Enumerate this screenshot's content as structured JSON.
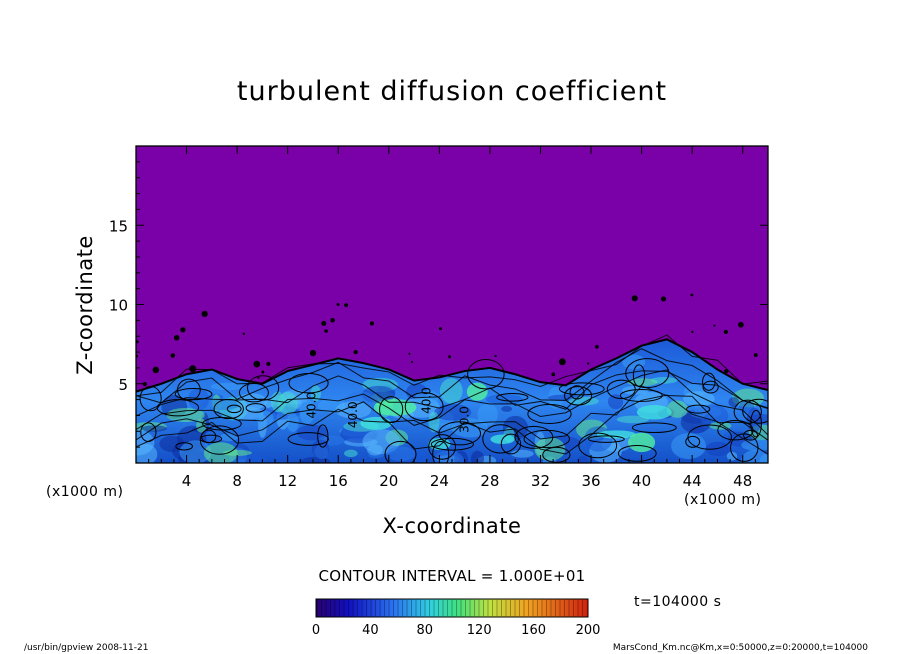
{
  "chart_data": {
    "type": "heatmap",
    "title": "turbulent diffusion coefficient",
    "xlabel": "X-coordinate",
    "ylabel": "Z-coordinate",
    "x_unit": "(x1000 m)",
    "z_unit": "(x1000 m)",
    "xlim": [
      0,
      50
    ],
    "zlim": [
      0,
      20
    ],
    "x_ticks": [
      4,
      8,
      12,
      16,
      20,
      24,
      28,
      32,
      36,
      40,
      44,
      48
    ],
    "z_ticks": [
      5,
      10,
      15
    ],
    "contour_interval": "CONTOUR INTERVAL = 1.000E+01",
    "contour_labels": [
      "40.0",
      "40.0",
      "40.0",
      "30.0"
    ],
    "colorbar": {
      "min": 0,
      "max": 200,
      "ticks": [
        0,
        40,
        80,
        120,
        160,
        200
      ]
    },
    "time_label": "t=104000 s",
    "background_color": "#7a00a8",
    "mixed_layer_top_km": [
      [
        0,
        4.5
      ],
      [
        2,
        5.0
      ],
      [
        4,
        5.6
      ],
      [
        6,
        5.9
      ],
      [
        8,
        5.3
      ],
      [
        10,
        5.0
      ],
      [
        12,
        5.8
      ],
      [
        14,
        6.2
      ],
      [
        16,
        6.6
      ],
      [
        18,
        6.3
      ],
      [
        20,
        5.9
      ],
      [
        22,
        5.2
      ],
      [
        24,
        5.4
      ],
      [
        26,
        5.8
      ],
      [
        28,
        6.0
      ],
      [
        30,
        5.6
      ],
      [
        32,
        5.1
      ],
      [
        34,
        4.9
      ],
      [
        36,
        5.9
      ],
      [
        38,
        6.6
      ],
      [
        40,
        7.4
      ],
      [
        42,
        7.8
      ],
      [
        44,
        7.0
      ],
      [
        46,
        5.9
      ],
      [
        48,
        5.0
      ],
      [
        50,
        4.6
      ]
    ]
  },
  "footer": {
    "left": "/usr/bin/gpview   2008-11-21",
    "right": "MarsCond_Km.nc@Km,x=0:50000,z=0:20000,t=104000"
  }
}
